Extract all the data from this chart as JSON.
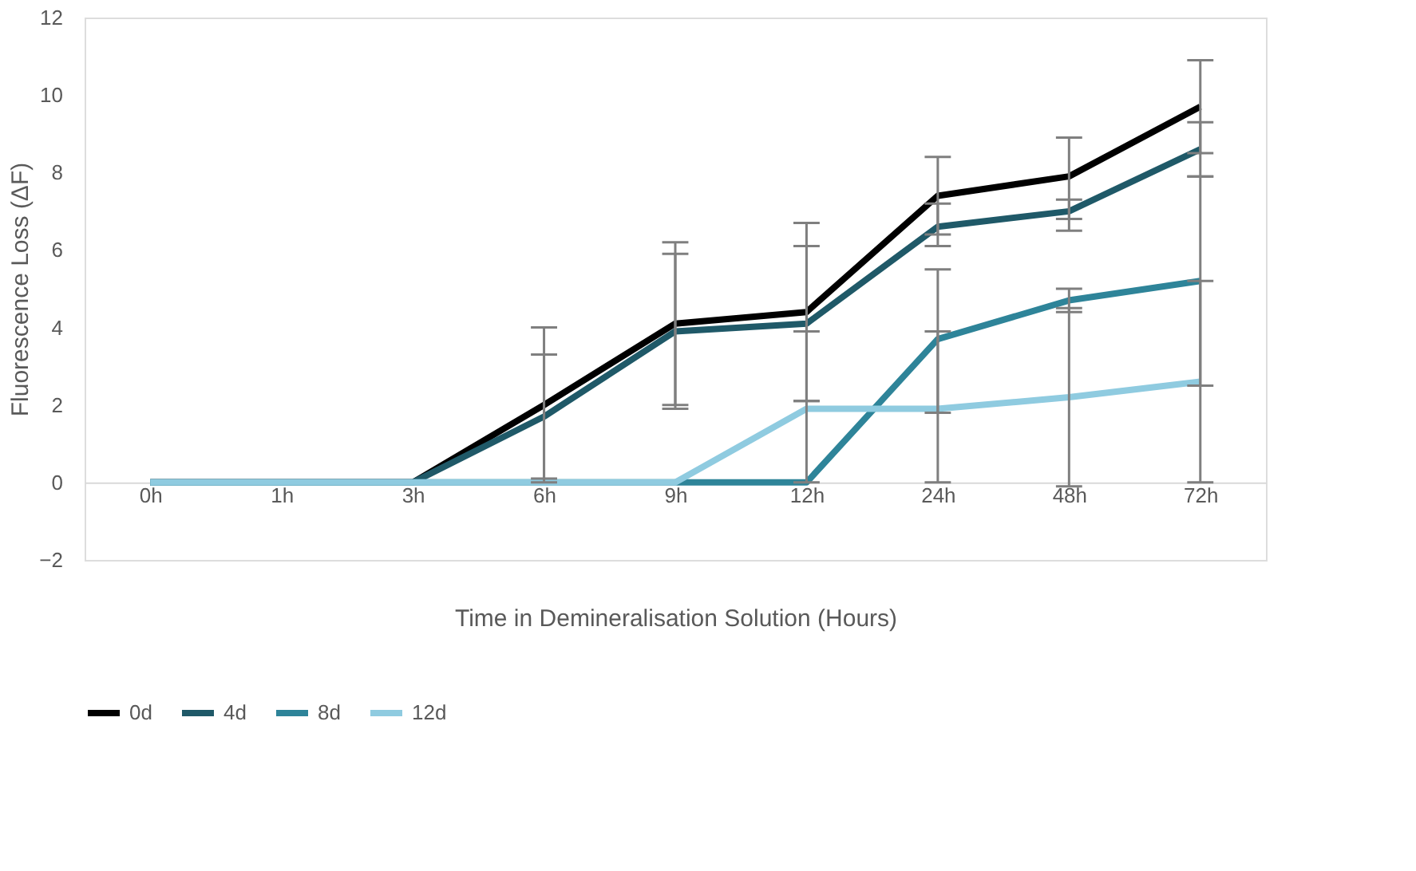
{
  "chart_data": {
    "type": "line",
    "xlabel": "Time in Demineralisation Solution (Hours)",
    "ylabel": "Fluorescence Loss (ΔF)",
    "categories": [
      "0h",
      "1h",
      "3h",
      "6h",
      "9h",
      "12h",
      "24h",
      "48h",
      "72h"
    ],
    "ylim": [
      -2,
      12
    ],
    "yticks": [
      -2,
      0,
      2,
      4,
      6,
      8,
      10,
      12
    ],
    "grid": false,
    "legend": "bottom",
    "marker": "none",
    "line_style": "solid",
    "series": [
      {
        "name": "0d",
        "color": "#000000",
        "values": [
          0,
          0,
          0,
          2.0,
          4.1,
          4.4,
          7.4,
          7.9,
          9.7
        ],
        "errors": [
          null,
          null,
          null,
          [
            0,
            4.0
          ],
          [
            2.0,
            6.2
          ],
          [
            2.1,
            6.7
          ],
          [
            6.4,
            8.4
          ],
          [
            6.8,
            8.9
          ],
          [
            8.5,
            10.9
          ]
        ]
      },
      {
        "name": "4d",
        "color": "#1f5968",
        "values": [
          0,
          0,
          0,
          1.7,
          3.9,
          4.1,
          6.6,
          7.0,
          8.6
        ],
        "errors": [
          null,
          null,
          null,
          [
            0.1,
            3.3
          ],
          [
            1.9,
            5.9
          ],
          [
            2.1,
            6.1
          ],
          [
            6.1,
            7.2
          ],
          [
            6.5,
            7.3
          ],
          [
            7.9,
            9.3
          ]
        ]
      },
      {
        "name": "8d",
        "color": "#2e8499",
        "values": [
          0,
          0,
          0,
          0,
          0,
          0,
          3.7,
          4.7,
          5.2
        ],
        "errors": [
          null,
          null,
          null,
          null,
          null,
          null,
          [
            1.8,
            5.5
          ],
          [
            4.4,
            5.0
          ],
          [
            2.5,
            7.9
          ]
        ]
      },
      {
        "name": "12d",
        "color": "#8fcbe0",
        "values": [
          0,
          0,
          0,
          0,
          0,
          1.9,
          1.9,
          2.2,
          2.6
        ],
        "errors": [
          null,
          null,
          null,
          null,
          null,
          [
            0,
            3.9
          ],
          [
            0,
            3.9
          ],
          [
            -0.1,
            4.5
          ],
          [
            0,
            5.2
          ]
        ]
      }
    ]
  }
}
